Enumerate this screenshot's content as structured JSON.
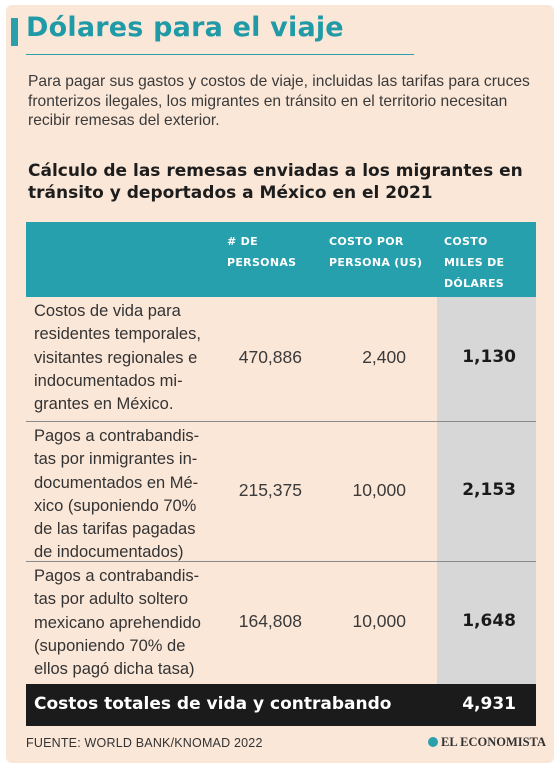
{
  "title": "Dólares para el viaje",
  "intro": "Para pagar sus gastos y costos de viaje, incluidas las tarifas para cruces fronterizos ilegales, los migrantes en tránsito en el territorio necesitan recibir remesas del exterior.",
  "subtitle": "Cálculo de las remesas enviadas a los migrantes en tránsito y deportados a México en el 2021",
  "table": {
    "headers": [
      "# de\npersonas",
      "Costo por\npersona (US)",
      "Costo\nmiles de\ndólares"
    ],
    "rows": [
      {
        "description": "Costos de vida para residentes temporales, visitantes regionales e indocumentados mi-grantes en México.",
        "persons": "470,886",
        "cost_per_person": "2,400",
        "cost_thousands": "1,130"
      },
      {
        "description": "Pagos a contrabandis-tas por inmigrantes in-documentados en Mé-xico (suponiendo 70% de las tarifas  pagadas de indocumentados)",
        "persons": "215,375",
        "cost_per_person": "10,000",
        "cost_thousands": "2,153"
      },
      {
        "description": "Pagos a contrabandis-tas por adulto soltero mexicano aprehendido (suponiendo 70% de ellos pagó dicha tasa)",
        "persons": "164,808",
        "cost_per_person": "10,000",
        "cost_thousands": "1,648"
      }
    ],
    "total_label": "Costos totales de vida y contrabando",
    "total_value": "4,931"
  },
  "source": "FUENTE: WORLD BANK/KNOMAD 2022",
  "brand": "EL ECONOMISTA",
  "colors": {
    "accent": "#27a0ad",
    "background": "#fbe7d8",
    "total_row": "#1b1b1b",
    "cost_column": "#d7d7d7"
  }
}
